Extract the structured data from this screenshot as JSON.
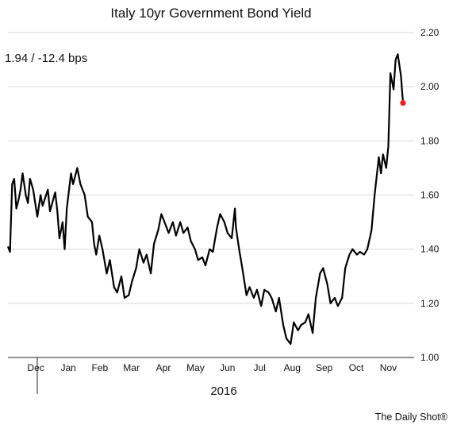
{
  "chart_data": {
    "type": "line",
    "title": "Italy 10yr Government Bond Yield",
    "annotation": "1.94  /  -12.4 bps",
    "year_label": "2016",
    "credit": "The Daily Shot®",
    "ylim": [
      1.0,
      2.2
    ],
    "y_ticks": [
      "1.00",
      "1.20",
      "1.40",
      "1.60",
      "1.80",
      "2.00",
      "2.20"
    ],
    "x_range": [
      "2015-11-20",
      "2016-11-30"
    ],
    "x_tick_labels": [
      "Dec",
      "Jan",
      "Feb",
      "Mar",
      "Apr",
      "May",
      "Jun",
      "Jul",
      "Aug",
      "Sep",
      "Oct",
      "Nov"
    ],
    "grid": "horizontal",
    "y_axis_side": "right",
    "line_color": "#000000",
    "end_marker_color": "#ee1c1c",
    "series": [
      {
        "x": [
          "2015-11-20",
          "2015-11-22",
          "2015-11-24",
          "2015-11-26",
          "2015-11-28",
          "2015-11-30",
          "2015-12-02",
          "2015-12-04",
          "2015-12-07",
          "2015-12-09",
          "2015-12-11",
          "2015-12-14",
          "2015-12-16",
          "2015-12-18",
          "2015-12-21",
          "2015-12-23",
          "2015-12-28",
          "2015-12-30",
          "2016-01-04",
          "2016-01-06",
          "2016-01-08",
          "2016-01-11",
          "2016-01-13",
          "2016-01-15",
          "2016-01-19",
          "2016-01-21",
          "2016-01-25",
          "2016-01-28",
          "2016-02-01",
          "2016-02-04",
          "2016-02-08",
          "2016-02-10",
          "2016-02-12",
          "2016-02-15",
          "2016-02-18",
          "2016-02-22",
          "2016-02-25",
          "2016-02-29",
          "2016-03-03",
          "2016-03-07",
          "2016-03-10",
          "2016-03-14",
          "2016-03-17",
          "2016-03-21",
          "2016-03-24",
          "2016-03-28",
          "2016-03-31",
          "2016-04-04",
          "2016-04-07",
          "2016-04-11",
          "2016-04-14",
          "2016-04-18",
          "2016-04-21",
          "2016-04-25",
          "2016-04-28",
          "2016-05-02",
          "2016-05-05",
          "2016-05-09",
          "2016-05-12",
          "2016-05-16",
          "2016-05-19",
          "2016-05-23",
          "2016-05-26",
          "2016-05-30",
          "2016-06-02",
          "2016-06-06",
          "2016-06-09",
          "2016-06-13",
          "2016-06-16",
          "2016-06-20",
          "2016-06-23",
          "2016-06-24",
          "2016-06-27",
          "2016-06-30",
          "2016-07-04",
          "2016-07-07",
          "2016-07-11",
          "2016-07-14",
          "2016-07-18",
          "2016-07-21",
          "2016-07-25",
          "2016-07-28",
          "2016-08-01",
          "2016-08-04",
          "2016-08-08",
          "2016-08-11",
          "2016-08-15",
          "2016-08-18",
          "2016-08-22",
          "2016-08-25",
          "2016-08-29",
          "2016-09-01",
          "2016-09-05",
          "2016-09-08",
          "2016-09-12",
          "2016-09-15",
          "2016-09-19",
          "2016-09-22",
          "2016-09-26",
          "2016-09-29",
          "2016-10-03",
          "2016-10-06",
          "2016-10-10",
          "2016-10-13",
          "2016-10-17",
          "2016-10-20",
          "2016-10-24",
          "2016-10-27",
          "2016-10-31",
          "2016-11-03",
          "2016-11-07",
          "2016-11-09",
          "2016-11-11",
          "2016-11-14",
          "2016-11-16",
          "2016-11-18",
          "2016-11-21",
          "2016-11-23",
          "2016-11-25",
          "2016-11-28",
          "2016-11-30"
        ],
        "values": [
          1.41,
          1.39,
          1.64,
          1.66,
          1.55,
          1.58,
          1.62,
          1.68,
          1.6,
          1.57,
          1.66,
          1.62,
          1.57,
          1.52,
          1.6,
          1.56,
          1.62,
          1.54,
          1.61,
          1.54,
          1.44,
          1.5,
          1.4,
          1.55,
          1.68,
          1.64,
          1.7,
          1.64,
          1.6,
          1.52,
          1.5,
          1.42,
          1.38,
          1.45,
          1.4,
          1.31,
          1.36,
          1.26,
          1.24,
          1.3,
          1.22,
          1.23,
          1.28,
          1.33,
          1.4,
          1.35,
          1.38,
          1.31,
          1.42,
          1.47,
          1.53,
          1.49,
          1.46,
          1.5,
          1.45,
          1.5,
          1.46,
          1.48,
          1.43,
          1.4,
          1.36,
          1.37,
          1.34,
          1.4,
          1.39,
          1.48,
          1.53,
          1.5,
          1.46,
          1.44,
          1.55,
          1.48,
          1.4,
          1.33,
          1.23,
          1.26,
          1.22,
          1.25,
          1.19,
          1.25,
          1.24,
          1.22,
          1.17,
          1.22,
          1.12,
          1.07,
          1.05,
          1.13,
          1.1,
          1.12,
          1.13,
          1.16,
          1.09,
          1.22,
          1.31,
          1.33,
          1.27,
          1.2,
          1.22,
          1.19,
          1.22,
          1.33,
          1.38,
          1.4,
          1.38,
          1.39,
          1.38,
          1.4,
          1.47,
          1.6,
          1.74,
          1.68,
          1.75,
          1.7,
          1.78,
          2.05,
          1.99,
          2.1,
          2.12,
          2.04,
          1.94
        ]
      }
    ]
  }
}
